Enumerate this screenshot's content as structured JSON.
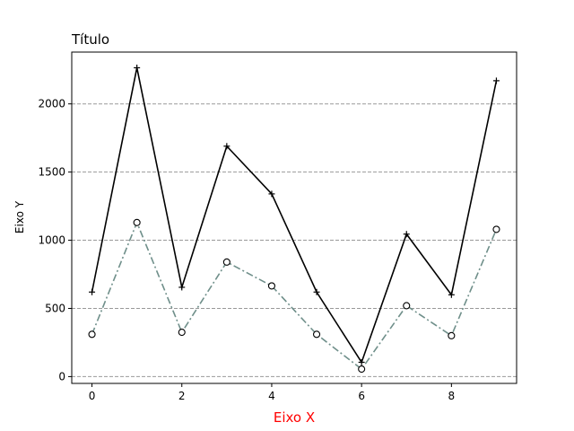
{
  "chart_data": {
    "type": "line",
    "title": "Título",
    "xlabel": "Eixo X",
    "ylabel": "Eixo Y",
    "xlabel_color": "#ff0000",
    "x": [
      0,
      1,
      2,
      3,
      4,
      5,
      6,
      7,
      8,
      9
    ],
    "xlim": [
      -0.45,
      9.45
    ],
    "ylim": [
      -50,
      2380
    ],
    "xticks": [
      0,
      2,
      4,
      6,
      8
    ],
    "yticks": [
      0,
      500,
      1000,
      1500,
      2000
    ],
    "grid": {
      "axis": "y",
      "style": "dashed",
      "color": "#999999"
    },
    "series": [
      {
        "values": [
          620,
          2265,
          655,
          1690,
          1340,
          620,
          105,
          1045,
          600,
          2170
        ],
        "color": "#000000",
        "line_style": "solid",
        "marker": "plus"
      },
      {
        "values": [
          310,
          1130,
          325,
          840,
          665,
          310,
          55,
          520,
          300,
          1080
        ],
        "color": "#6f8f8a",
        "line_style": "dash-dot",
        "marker": "open-circle"
      }
    ]
  }
}
